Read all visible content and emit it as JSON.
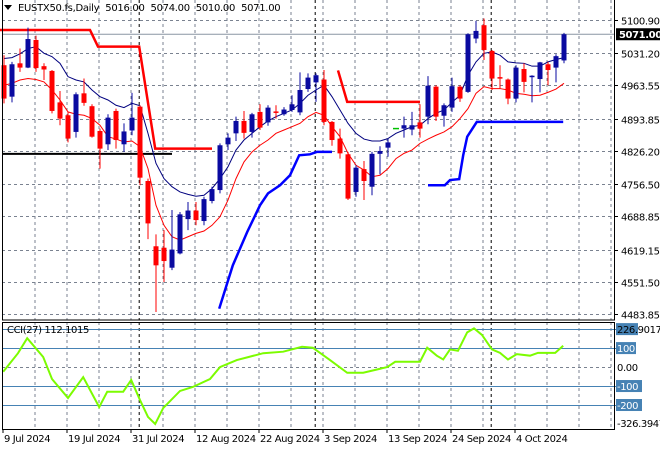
{
  "header": {
    "symbol": "EUSTX50.fs,Daily",
    "open": "5016.00",
    "high": "5074.00",
    "low": "5010.00",
    "close": "5071.00"
  },
  "chart_data": [
    {
      "type": "candlestick",
      "title": "EUSTX50.fs,Daily",
      "price_axis": {
        "ticks": [
          "5100.90",
          "5031.20",
          "4963.55",
          "4893.85",
          "4826.20",
          "4756.50",
          "4688.85",
          "4619.15",
          "4551.50",
          "4483.85"
        ],
        "ylim": [
          4483.85,
          5100.9
        ],
        "current_price_label": "5071.00",
        "current_price": 5071.0
      },
      "date_axis": {
        "ticks": [
          {
            "bar": 0,
            "label": "9 Jul 2024"
          },
          {
            "bar": 8,
            "label": "19 Jul 2024"
          },
          {
            "bar": 16,
            "label": "31 Jul 2024"
          },
          {
            "bar": 24,
            "label": "12 Aug 2024"
          },
          {
            "bar": 32,
            "label": "22 Aug 2024"
          },
          {
            "bar": 40,
            "label": "3 Sep 2024"
          },
          {
            "bar": 48,
            "label": "13 Sep 2024"
          },
          {
            "bar": 56,
            "label": "24 Sep 2024"
          },
          {
            "bar": 64,
            "label": "4 Oct 2024"
          }
        ]
      },
      "grid": true,
      "colors": {
        "bull": "#0A0AA0",
        "bear": "#FF0000",
        "doji": "#00C000",
        "ma_fast": "#00007F",
        "ma_slow": "#FF0000",
        "stop_upper": "#FF0000",
        "stop_lower": "#0000FF",
        "support": "#000000",
        "separator": "#000000"
      },
      "candles_ohlc": [
        [
          5006,
          5027,
          4926,
          4936
        ],
        [
          4940,
          5013,
          4928,
          5008
        ],
        [
          5010,
          5041,
          4992,
          5001
        ],
        [
          5001,
          5085,
          5000,
          5061
        ],
        [
          5059,
          5068,
          4992,
          5000
        ],
        [
          5004,
          5010,
          4975,
          4997
        ],
        [
          4994,
          4996,
          4905,
          4910
        ],
        [
          4928,
          4952,
          4880,
          4894
        ],
        [
          4901,
          4908,
          4844,
          4852
        ],
        [
          4866,
          4949,
          4854,
          4945
        ],
        [
          4947,
          4978,
          4921,
          4927
        ],
        [
          4920,
          4924,
          4854,
          4856
        ],
        [
          4868,
          4873,
          4789,
          4831
        ],
        [
          4840,
          4903,
          4828,
          4896
        ],
        [
          4910,
          4915,
          4831,
          4849
        ],
        [
          4840,
          4884,
          4824,
          4867
        ],
        [
          4869,
          4948,
          4859,
          4896
        ],
        [
          4919,
          4922,
          4754,
          4770
        ],
        [
          4763,
          4768,
          4641,
          4674
        ],
        [
          4626,
          4651,
          4488,
          4586
        ],
        [
          4623,
          4660,
          4551,
          4595
        ],
        [
          4581,
          4702,
          4576,
          4619
        ],
        [
          4611,
          4698,
          4609,
          4693
        ],
        [
          4683,
          4719,
          4660,
          4701
        ],
        [
          4701,
          4719,
          4670,
          4681
        ],
        [
          4679,
          4730,
          4670,
          4725
        ],
        [
          4721,
          4751,
          4716,
          4746
        ],
        [
          4744,
          4842,
          4737,
          4838
        ],
        [
          4840,
          4863,
          4828,
          4854
        ],
        [
          4863,
          4898,
          4847,
          4889
        ],
        [
          4889,
          4910,
          4852,
          4864
        ],
        [
          4866,
          4906,
          4854,
          4903
        ],
        [
          4908,
          4924,
          4870,
          4875
        ],
        [
          4886,
          4922,
          4879,
          4917
        ],
        [
          4909,
          4922,
          4894,
          4907
        ],
        [
          4903,
          4918,
          4900,
          4913
        ],
        [
          4912,
          4943,
          4908,
          4924
        ],
        [
          4907,
          4991,
          4901,
          4954
        ],
        [
          4956,
          4989,
          4950,
          4980
        ],
        [
          4970,
          4989,
          4929,
          4985
        ],
        [
          4976,
          4996,
          4880,
          4887
        ],
        [
          4887,
          4889,
          4837,
          4849
        ],
        [
          4852,
          4873,
          4810,
          4821
        ],
        [
          4819,
          4824,
          4723,
          4726
        ],
        [
          4740,
          4796,
          4730,
          4791
        ],
        [
          4788,
          4805,
          4723,
          4763
        ],
        [
          4751,
          4824,
          4733,
          4820
        ],
        [
          4820,
          4836,
          4777,
          4826
        ],
        [
          4833,
          4852,
          4814,
          4844
        ],
        [
          4873,
          4873,
          4873,
          4873
        ],
        [
          4873,
          4898,
          4854,
          4880
        ],
        [
          4871,
          4908,
          4859,
          4880
        ],
        [
          4886,
          4924,
          4854,
          4873
        ],
        [
          4898,
          4983,
          4882,
          4963
        ],
        [
          4961,
          4964,
          4889,
          4898
        ],
        [
          4900,
          4926,
          4877,
          4922
        ],
        [
          4917,
          4980,
          4908,
          4962
        ],
        [
          4961,
          4964,
          4929,
          4936
        ],
        [
          4950,
          5073,
          4948,
          5071
        ],
        [
          5062,
          5099,
          5052,
          5078
        ],
        [
          5090,
          5104,
          5017,
          5038
        ],
        [
          5036,
          5038,
          4954,
          4978
        ],
        [
          4981,
          5006,
          4957,
          4980
        ],
        [
          4976,
          4978,
          4924,
          4936
        ],
        [
          4936,
          5006,
          4928,
          5001
        ],
        [
          4998,
          5010,
          4949,
          4971
        ],
        [
          4982,
          4985,
          4928,
          4984
        ],
        [
          4977,
          5013,
          4949,
          5012
        ],
        [
          5008,
          5013,
          4964,
          4996
        ],
        [
          5001,
          5029,
          4970,
          5025
        ],
        [
          5016,
          5074,
          5010,
          5071
        ]
      ],
      "ma_fast": [
        5020,
        5022,
        5030,
        5041,
        5045,
        5031,
        5024,
        5010,
        4982,
        4975,
        4971,
        4954,
        4940,
        4933,
        4922,
        4917,
        4926,
        4921,
        4863,
        4800,
        4768,
        4751,
        4740,
        4735,
        4731,
        4733,
        4747,
        4768,
        4793,
        4828,
        4849,
        4863,
        4877,
        4889,
        4898,
        4905,
        4912,
        4926,
        4943,
        4954,
        4964,
        4940,
        4912,
        4884,
        4863,
        4851,
        4847,
        4847,
        4852,
        4863,
        4870,
        4877,
        4880,
        4894,
        4905,
        4912,
        4928,
        4943,
        4985,
        5013,
        5031,
        5034,
        5027,
        5013,
        5011,
        5010,
        5004,
        5004,
        5013,
        5018,
        5022
      ],
      "ma_slow": [
        4964,
        4968,
        4975,
        4978,
        4976,
        4971,
        4954,
        4933,
        4908,
        4903,
        4901,
        4894,
        4880,
        4856,
        4851,
        4845,
        4847,
        4835,
        4789,
        4712,
        4670,
        4646,
        4639,
        4646,
        4653,
        4658,
        4670,
        4688,
        4723,
        4768,
        4803,
        4824,
        4838,
        4849,
        4863,
        4870,
        4877,
        4884,
        4898,
        4907,
        4901,
        4877,
        4856,
        4821,
        4796,
        4786,
        4772,
        4775,
        4789,
        4810,
        4821,
        4828,
        4842,
        4851,
        4859,
        4866,
        4877,
        4894,
        4915,
        4947,
        4961,
        4957,
        4957,
        4954,
        4947,
        4945,
        4942,
        4943,
        4949,
        4956,
        4968
      ],
      "stop_upper_segments": [
        [
          [
            -0.5,
            5080
          ],
          [
            10.75,
            5080
          ],
          [
            11.75,
            5045
          ],
          [
            16.9,
            5045
          ],
          [
            18.9,
            4831
          ],
          [
            26,
            4831
          ]
        ],
        [
          [
            41.75,
            4995
          ],
          [
            42.9,
            4929
          ],
          [
            52,
            4929
          ]
        ]
      ],
      "stop_lower_segments": [
        [
          [
            26.9,
            4495
          ],
          [
            28.6,
            4586
          ],
          [
            30.4,
            4656
          ],
          [
            32,
            4712
          ],
          [
            33,
            4737
          ],
          [
            34.5,
            4754
          ],
          [
            35.75,
            4775
          ],
          [
            36.9,
            4817
          ],
          [
            38.25,
            4819
          ],
          [
            39.1,
            4824
          ],
          [
            41,
            4824
          ]
        ],
        [
          [
            53,
            4754
          ],
          [
            55.1,
            4754
          ],
          [
            55.75,
            4765
          ],
          [
            56.9,
            4767
          ],
          [
            57.4,
            4817
          ],
          [
            57.9,
            4856
          ],
          [
            59.1,
            4887
          ],
          [
            69.9,
            4887
          ]
        ]
      ],
      "support_line": {
        "price": 4820,
        "from_bar": -0.5,
        "to_bar": 21
      },
      "period_separators": [
        16.9,
        38.9,
        60.9
      ]
    },
    {
      "type": "line",
      "title": "CCI(27) 112.1015",
      "name": "CCI(27)",
      "last_value": "112.1015",
      "ylim": [
        -326.3947,
        226.9017
      ],
      "ticks": [
        "226.9017",
        "100",
        "0.00",
        "-100",
        "-200",
        "-326.3947"
      ],
      "levels": [
        200,
        100,
        -100,
        -200
      ],
      "colors": {
        "line": "#7CFC00",
        "levels": "#4682B4"
      },
      "points": [
        [
          -0.1,
          -25
        ],
        [
          1.75,
          73
        ],
        [
          2.9,
          152
        ],
        [
          4.9,
          53
        ],
        [
          6,
          -63
        ],
        [
          8,
          -163
        ],
        [
          9.9,
          -53
        ],
        [
          11.9,
          -211
        ],
        [
          12.9,
          -130
        ],
        [
          14.9,
          -130
        ],
        [
          15.9,
          -68
        ],
        [
          17,
          -174
        ],
        [
          18,
          -263
        ],
        [
          18.9,
          -300
        ],
        [
          19.9,
          -216
        ],
        [
          22,
          -126
        ],
        [
          23.6,
          -105
        ],
        [
          25.75,
          -63
        ],
        [
          27,
          0
        ],
        [
          29.1,
          37
        ],
        [
          30.4,
          51
        ],
        [
          32.4,
          73
        ],
        [
          34.9,
          81
        ],
        [
          37.25,
          107
        ],
        [
          38.6,
          102
        ],
        [
          40.75,
          37
        ],
        [
          42.9,
          -30
        ],
        [
          44.9,
          -30
        ],
        [
          47.9,
          0
        ],
        [
          48.9,
          28
        ],
        [
          52,
          28
        ],
        [
          52.9,
          102
        ],
        [
          54.1,
          60
        ],
        [
          54.9,
          40
        ],
        [
          55.75,
          93
        ],
        [
          56.75,
          86
        ],
        [
          57.9,
          183
        ],
        [
          58.75,
          204
        ],
        [
          59.75,
          169
        ],
        [
          61,
          93
        ],
        [
          62,
          75
        ],
        [
          63,
          40
        ],
        [
          64.1,
          68
        ],
        [
          65.75,
          60
        ],
        [
          66.75,
          75
        ],
        [
          68.9,
          75
        ],
        [
          69.9,
          112.1
        ]
      ]
    }
  ]
}
